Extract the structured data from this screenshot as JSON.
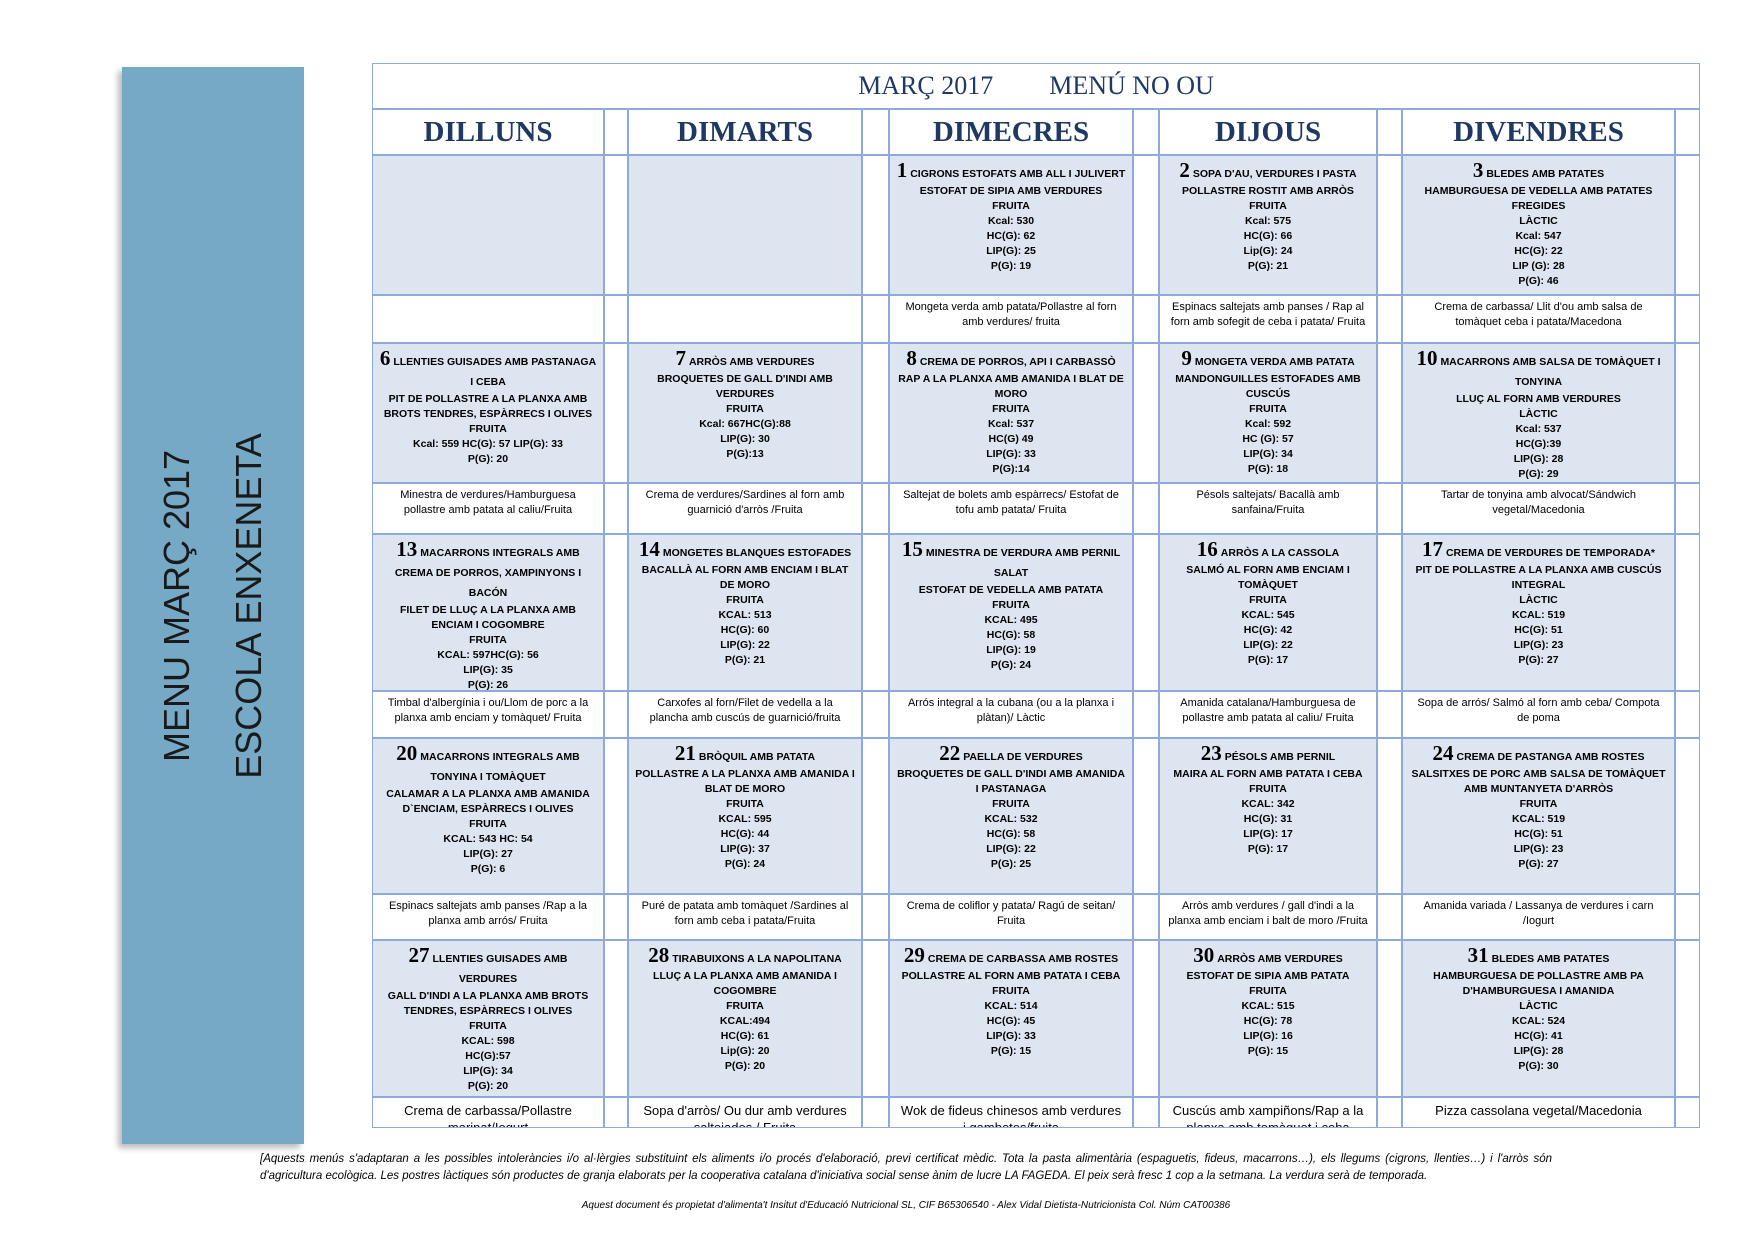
{
  "sidebar": {
    "line1": "MENU MARÇ 2017",
    "line2": "ESCOLA ENXENETA"
  },
  "header": {
    "month": "MARÇ 2017",
    "menu": "MENÚ NO OU"
  },
  "days": [
    "DILLUNS",
    "DIMARTS",
    "DIMECRES",
    "DIJOUS",
    "DIVENDRES"
  ],
  "weeks": [
    {
      "cells": [
        null,
        null,
        {
          "day": "1",
          "lines": [
            "CIGRONS ESTOFATS AMB ALL I JULIVERT",
            "ESTOFAT DE SIPIA AMB VERDURES",
            "FRUITA",
            "Kcal: 530",
            "HC(G): 62",
            "LIP(G): 25",
            "P(G): 19"
          ],
          "dinner": "Mongeta verda amb patata/Pollastre al forn amb verdures/ fruita"
        },
        {
          "day": "2",
          "lines": [
            "SOPA D'AU, VERDURES I PASTA",
            "POLLASTRE ROSTIT AMB ARRÒS",
            "FRUITA",
            "Kcal: 575",
            "HC(G): 66",
            "Lip(G): 24",
            "P(G): 21"
          ],
          "dinner": "Espinacs saltejats amb panses / Rap al forn amb sofegit de ceba i patata/ Fruita"
        },
        {
          "day": "3",
          "lines": [
            "BLEDES AMB PATATES",
            "HAMBURGUESA DE VEDELLA AMB PATATES FREGIDES",
            "LÀCTIC",
            "Kcal: 547",
            "HC(G): 22",
            "LIP (G): 28",
            "P(G): 46"
          ],
          "dinner": "Crema de carbassa/ Llit d'ou amb salsa de tomàquet ceba i patata/Macedona"
        }
      ]
    },
    {
      "cells": [
        {
          "day": "6",
          "lines": [
            "LLENTIES GUISADES AMB PASTANAGA I CEBA",
            "PIT DE POLLASTRE A LA PLANXA AMB BROTS TENDRES, ESPÀRRECS I OLIVES",
            "FRUITA",
            "Kcal: 559 HC(G): 57 LIP(G): 33",
            "P(G): 20"
          ],
          "dinner": "Minestra de verdures/Hamburguesa pollastre amb patata al caliu/Fruita"
        },
        {
          "day": "7",
          "lines": [
            "ARRÒS AMB VERDURES",
            "BROQUETES DE GALL D'INDI AMB VERDURES",
            "FRUITA",
            "Kcal: 667HC(G):88",
            "LIP(G): 30",
            "P(G):13"
          ],
          "dinner": "Crema de verdures/Sardines al forn amb guarnició d'arròs /Fruita"
        },
        {
          "day": "8",
          "lines": [
            "CREMA DE PORROS, API I CARBASSÒ",
            "RAP A LA PLANXA AMB AMANIDA I BLAT DE MORO",
            "FRUITA",
            "Kcal: 537",
            "HC(G) 49",
            "LIP(G): 33",
            "P(G):14"
          ],
          "dinner": "Saltejat de bolets amb espàrrecs/ Estofat de tofu amb patata/ Fruita"
        },
        {
          "day": "9",
          "lines": [
            "MONGETA VERDA AMB PATATA",
            "MANDONGUILLES ESTOFADES AMB CUSCÚS",
            "FRUITA",
            "Kcal: 592",
            "HC (G): 57",
            "LIP(G): 34",
            "P(G): 18"
          ],
          "dinner": "Pésols saltejats/ Bacallà amb sanfaina/Fruita"
        },
        {
          "day": "10",
          "lines": [
            "MACARRONS AMB SALSA DE TOMÀQUET I TONYINA",
            "LLUÇ AL FORN AMB VERDURES",
            "LÀCTIC",
            "Kcal: 537",
            "HC(G):39",
            "LIP(G): 28",
            "P(G): 29"
          ],
          "dinner": "Tartar de tonyina amb alvocat/Sándwich vegetal/Macedonia"
        }
      ]
    },
    {
      "cells": [
        {
          "day": "13",
          "lines": [
            "MACARRONS INTEGRALS AMB CREMA DE PORROS, XAMPINYONS I BACÓN",
            "FILET DE LLUÇ A LA PLANXA AMB ENCIAM I COGOMBRE",
            "FRUITA",
            "KCAL: 597HC(G): 56",
            "LIP(G): 35",
            "P(G): 26"
          ],
          "dinner": "Timbal d'albergínia i ou/Llom de porc a la planxa amb enciam y tomàquet/ Fruita"
        },
        {
          "day": "14",
          "lines": [
            "MONGETES BLANQUES ESTOFADES",
            "BACALLÀ AL FORN AMB ENCIAM I BLAT DE MORO",
            "FRUITA",
            "KCAL: 513",
            "HC(G): 60",
            "LIP(G): 22",
            "P(G): 21"
          ],
          "dinner": "Carxofes al forn/Filet de vedella a la plancha amb cuscús de guarnició/fruita"
        },
        {
          "day": "15",
          "lines": [
            "MINESTRA DE VERDURA AMB PERNIL SALAT",
            "ESTOFAT DE VEDELLA AMB PATATA",
            "FRUITA",
            "KCAL: 495",
            "HC(G): 58",
            "LIP(G): 19",
            "P(G): 24"
          ],
          "dinner": "Arrós integral a la cubana (ou a la planxa i plàtan)/ Làctic"
        },
        {
          "day": "16",
          "lines": [
            "ARRÒS A LA CASSOLA",
            "SALMÓ AL FORN AMB ENCIAM I TOMÀQUET",
            "FRUITA",
            "KCAL: 545",
            "HC(G): 42",
            "LIP(G): 22",
            "P(G): 17"
          ],
          "dinner": "Amanida catalana/Hamburguesa de pollastre amb patata al caliu/ Fruita"
        },
        {
          "day": "17",
          "lines": [
            "CREMA DE VERDURES DE TEMPORADA*",
            "PIT DE POLLASTRE A LA PLANXA AMB CUSCÚS INTEGRAL",
            "LÀCTIC",
            "KCAL: 519",
            "HC(G): 51",
            "LIP(G): 23",
            "P(G): 27"
          ],
          "dinner": "Sopa de arrós/ Salmó al forn amb ceba/ Compota de poma"
        }
      ]
    },
    {
      "cells": [
        {
          "day": "20",
          "lines": [
            "MACARRONS INTEGRALS AMB TONYINA I TOMÀQUET",
            "CALAMAR A LA PLANXA AMB AMANIDA D`ENCIAM, ESPÀRRECS I OLIVES",
            "FRUITA",
            "KCAL: 543 HC: 54",
            "LIP(G): 27",
            "P(G): 6"
          ],
          "dinner": "Espinacs saltejats amb panses /Rap a la planxa amb arrós/ Fruita"
        },
        {
          "day": "21",
          "lines": [
            "BRÒQUIL AMB PATATA",
            "POLLASTRE A LA PLANXA AMB AMANIDA I BLAT DE MORO",
            "FRUITA",
            "KCAL: 595",
            "HC(G): 44",
            "LIP(G): 37",
            "P(G): 24"
          ],
          "dinner": "Puré de patata amb tomàquet /Sardines al forn amb ceba i patata/Fruita"
        },
        {
          "day": "22",
          "lines": [
            "PAELLA DE VERDURES",
            "BROQUETES DE GALL D'INDI AMB AMANIDA I PASTANAGA",
            "FRUITA",
            "KCAL: 532",
            "HC(G): 58",
            "LIP(G): 22",
            "P(G): 25"
          ],
          "dinner": "Crema de coliflor y patata/ Ragú de seitan/ Fruita"
        },
        {
          "day": "23",
          "lines": [
            "PÉSOLS AMB PERNIL",
            "MAIRA AL FORN AMB PATATA I CEBA",
            "FRUITA",
            "KCAL: 342",
            "HC(G): 31",
            "LIP(G): 17",
            "P(G): 17"
          ],
          "dinner": "Arròs amb verdures / gall d'indi a la planxa amb enciam i balt de moro /Fruita"
        },
        {
          "day": "24",
          "lines": [
            "CREMA DE PASTANGA AMB ROSTES",
            "SALSITXES DE PORC AMB SALSA DE TOMÀQUET AMB MUNTANYETA D'ARRÒS",
            "FRUITA",
            "KCAL: 519",
            "HC(G): 51",
            "LIP(G): 23",
            "P(G): 27"
          ],
          "dinner": "Amanida variada / Lassanya de verdures i carn /Iogurt"
        }
      ]
    },
    {
      "cells": [
        {
          "day": "27",
          "lines": [
            "LLENTIES GUISADES AMB VERDURES",
            "GALL D'INDI A LA PLANXA AMB BROTS TENDRES, ESPÀRRECS I OLIVES",
            "FRUITA",
            "KCAL: 598",
            "HC(G):57",
            "LIP(G): 34",
            "P(G): 20"
          ],
          "dinner": "Crema de carbassa/Pollastre marinat/Iogurt"
        },
        {
          "day": "28",
          "lines": [
            "TIRABUIXONS A LA NAPOLITANA",
            "LLUÇ A LA PLANXA AMB AMANIDA I COGOMBRE",
            "FRUITA",
            "KCAL:494",
            "HC(G): 61",
            "Lip(G): 20",
            "P(G): 20"
          ],
          "dinner": "Sopa d'arròs/ Ou dur amb verdures saltejades / Fruita"
        },
        {
          "day": "29",
          "lines": [
            "CREMA DE CARBASSA AMB ROSTES",
            "POLLASTRE AL FORN AMB PATATA I CEBA",
            "FRUITA",
            "KCAL: 514",
            "HC(G): 45",
            "LIP(G): 33",
            "P(G): 15"
          ],
          "dinner": "Wok de fideus chinesos amb verdures i gambetes/fruita"
        },
        {
          "day": "30",
          "lines": [
            "ARRÒS AMB VERDURES",
            "ESTOFAT DE SIPIA AMB PATATA",
            "FRUITA",
            "KCAL: 515",
            "HC(G): 78",
            "LIP(G): 16",
            "P(G): 15"
          ],
          "dinner": "Cuscús amb xampiñons/Rap a la planxa amb tomàquet i ceba"
        },
        {
          "day": "31",
          "lines": [
            "BLEDES AMB PATATES",
            "HAMBURGUESA DE POLLASTRE AMB PA D'HAMBURGUESA I AMANIDA",
            "LÀCTIC",
            "KCAL: 524",
            "HC(G): 41",
            "LIP(G): 28",
            "P(G): 30"
          ],
          "dinner": "Pizza cassolana vegetal/Macedonia"
        }
      ]
    }
  ],
  "footer": {
    "note": "[Aquests menús s'adaptaran a les possibles intoleràncies i/o al·lèrgies substituint els aliments i/o procés d'elaboració, previ certificat mèdic. Tota la pasta alimentària (espaguetis, fideus, macarrons…), els llegums (cigrons, llenties…) i l'arròs són d'agricultura ecològica. Les postres làctiques són productes de granja elaborats per la cooperativa catalana d'iniciativa social sense ànim de lucre LA FAGEDA. El peix serà fresc 1 cop a la setmana. La verdura serà de temporada.",
    "credit": "Aquest document és propietat d'alimenta't Insitut d'Educació Nutricional SL, CIF B65306540 - Alex Vidal Dietista-Nutricionista Col.  Núm CAT00386"
  }
}
